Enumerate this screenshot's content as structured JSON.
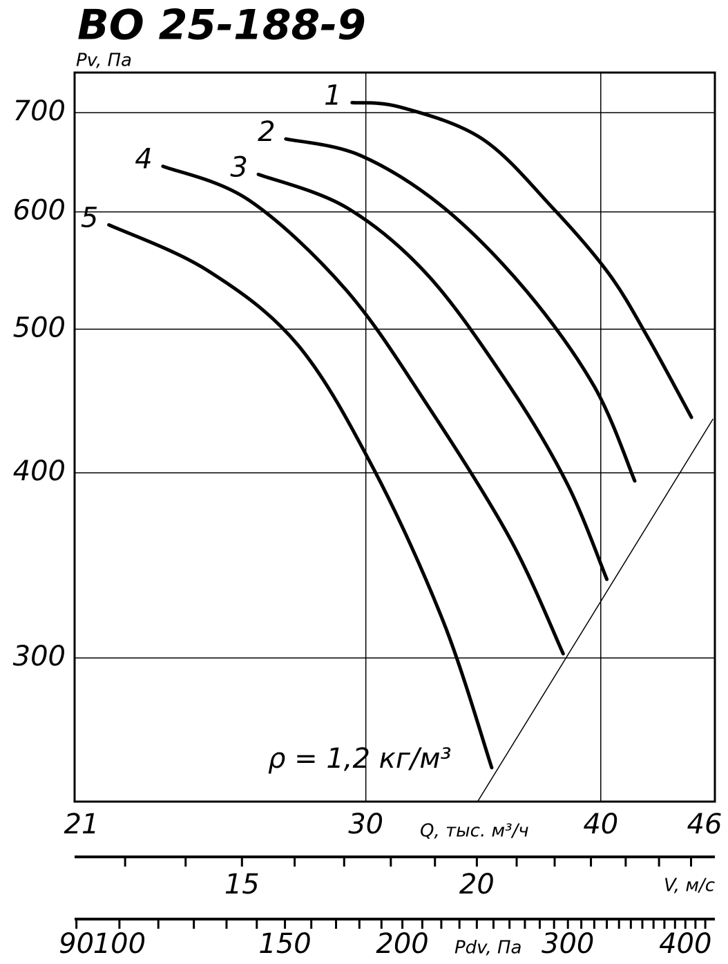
{
  "chart_data": {
    "type": "line",
    "title": "ВО 25-188-9",
    "y_label": "Pv, Па",
    "x_label": "Q, тыс. м³/ч",
    "annotation": "ρ = 1,2 кг/м³",
    "log_x": true,
    "log_y": true,
    "grid": true,
    "color": "#000000",
    "xlim": [
      21,
      46
    ],
    "xticks": [
      21,
      30,
      40,
      46
    ],
    "ylim": [
      240,
      745
    ],
    "yticks": [
      300,
      400,
      500,
      600,
      700
    ],
    "series": [
      {
        "name": "1",
        "x": [
          29.5,
          31.3,
          34.6,
          37.7,
          40.4,
          42.4,
          44.7
        ],
        "values": [
          711,
          706,
          672,
          604,
          545,
          493,
          436
        ]
      },
      {
        "name": "2",
        "x": [
          27.2,
          29.8,
          33.0,
          36.5,
          39.7,
          41.7
        ],
        "values": [
          672,
          655,
          604,
          531,
          457,
          395
        ]
      },
      {
        "name": "3",
        "x": [
          26.3,
          29.3,
          32.4,
          35.8,
          38.4,
          40.3
        ],
        "values": [
          636,
          604,
          543,
          457,
          393,
          339
        ]
      },
      {
        "name": "4",
        "x": [
          23.4,
          26.0,
          29.3,
          32.4,
          35.8,
          38.2
        ],
        "values": [
          644,
          611,
          531,
          443,
          361,
          302
        ]
      },
      {
        "name": "5",
        "x": [
          21.9,
          24.7,
          27.6,
          30.3,
          33.0,
          35.0
        ],
        "values": [
          588,
          548,
          488,
          402,
          317,
          253
        ]
      }
    ],
    "boundary": {
      "x": [
        34.4,
        45.9
      ],
      "values": [
        240,
        435
      ]
    },
    "v_axis": {
      "label": "V, м/с",
      "lim": [
        12.22,
        26.77
      ],
      "ticks": [
        15,
        20
      ],
      "minor_ticks": [
        13,
        14,
        15,
        16,
        17,
        18,
        19,
        20,
        21,
        22,
        23,
        24,
        25,
        26
      ]
    },
    "pdv_axis": {
      "label": "Pdv, Па",
      "lim": [
        89.6,
        430
      ],
      "ticks": [
        90,
        100,
        150,
        200,
        300,
        400
      ],
      "minor_ticks": [
        90,
        100,
        110,
        120,
        130,
        140,
        150,
        160,
        170,
        180,
        190,
        200,
        210,
        220,
        230,
        240,
        250,
        260,
        270,
        280,
        290,
        300,
        310,
        320,
        330,
        340,
        350,
        360,
        370,
        380,
        390,
        400,
        410,
        420
      ]
    }
  }
}
